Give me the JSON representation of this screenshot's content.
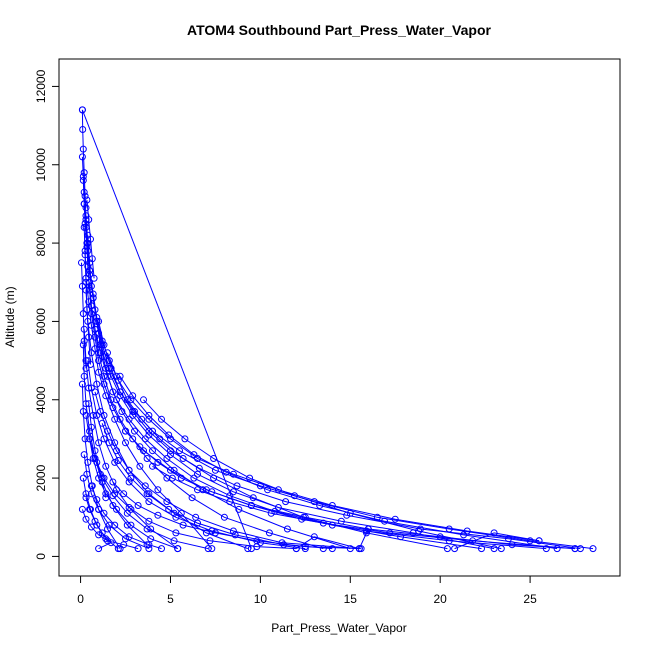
{
  "chart_data": {
    "type": "line",
    "title": "ATOM4 Southbound Part_Press_Water_Vapor",
    "xlabel": "Part_Press_Water_Vapor",
    "ylabel": "Altitude (m)",
    "xlim": [
      -1.2,
      30.0
    ],
    "ylim": [
      -500,
      12700
    ],
    "x_ticks": [
      0,
      5,
      10,
      15,
      20,
      25
    ],
    "y_ticks": [
      0,
      2000,
      4000,
      6000,
      8000,
      10000,
      12000
    ],
    "grid": false,
    "color": "#0000ff",
    "marker": "open-circle",
    "series": [
      {
        "x": [
          0.1,
          0.12,
          0.15,
          0.2,
          0.25,
          0.3,
          0.35,
          0.4,
          0.5,
          0.6,
          0.8,
          1.0,
          1.3,
          1.8,
          2.5,
          3.5,
          5.0,
          7.0,
          9.5,
          12.5,
          16.0,
          20.0,
          24.0,
          27.5
        ],
        "y": [
          11400,
          10900,
          10400,
          9800,
          9200,
          8600,
          8000,
          7400,
          6800,
          6200,
          5600,
          5000,
          4400,
          3800,
          3200,
          2700,
          2200,
          1700,
          1300,
          1000,
          700,
          500,
          300,
          200
        ]
      },
      {
        "x": [
          0.1,
          9.5
        ],
        "y": [
          11400,
          200
        ]
      },
      {
        "x": [
          0.15,
          0.2,
          0.3,
          0.4,
          0.5,
          0.7,
          0.9,
          1.2,
          1.6,
          2.2,
          3.0,
          4.0,
          5.5,
          7.5,
          10.0,
          13.0,
          16.5,
          20.5,
          25.0,
          28.5
        ],
        "y": [
          9600,
          9000,
          8400,
          7800,
          7200,
          6600,
          6000,
          5400,
          4800,
          4200,
          3700,
          3200,
          2700,
          2200,
          1800,
          1400,
          1000,
          700,
          400,
          200
        ]
      },
      {
        "x": [
          0.2,
          0.25,
          0.35,
          0.5,
          0.7,
          0.9,
          1.2,
          1.6,
          2.1,
          2.8,
          3.8,
          5.0,
          6.5,
          8.5,
          11.0,
          14.0,
          17.5,
          21.5,
          25.5
        ],
        "y": [
          9000,
          8500,
          7900,
          7300,
          6700,
          6100,
          5500,
          5000,
          4500,
          4000,
          3500,
          3000,
          2500,
          2100,
          1700,
          1300,
          950,
          650,
          400
        ]
      },
      {
        "x": [
          0.3,
          0.4,
          0.5,
          0.7,
          0.9,
          1.1,
          1.4,
          1.8,
          2.3,
          3.0,
          4.0,
          5.2,
          6.8,
          8.8,
          11.5,
          15.0
        ],
        "y": [
          8700,
          8000,
          7300,
          6600,
          6000,
          5400,
          4800,
          4200,
          3700,
          3200,
          2700,
          2200,
          1700,
          1200,
          700,
          200
        ]
      },
      {
        "x": [
          0.4,
          0.5,
          0.6,
          0.8,
          1.0,
          1.3,
          1.7,
          2.2,
          2.9,
          3.8,
          5.0,
          6.5,
          8.5,
          11.0,
          14.5,
          18.5,
          23.0
        ],
        "y": [
          8200,
          7500,
          6900,
          6300,
          5700,
          5100,
          4600,
          4100,
          3600,
          3100,
          2600,
          2100,
          1650,
          1250,
          900,
          600,
          200
        ]
      },
      {
        "x": [
          0.25,
          0.3,
          0.45,
          0.6,
          0.8,
          1.0,
          1.4,
          1.9,
          2.5,
          3.3,
          4.3,
          5.6,
          7.3
        ],
        "y": [
          7800,
          7100,
          6500,
          5900,
          5300,
          4700,
          4100,
          3500,
          2900,
          2300,
          1700,
          1100,
          200
        ]
      },
      {
        "x": [
          0.5,
          0.6,
          0.8,
          1.0,
          1.3,
          1.7,
          2.2,
          2.9,
          3.7,
          4.8,
          6.2,
          8.0,
          10.5,
          13.5
        ],
        "y": [
          7000,
          6400,
          5800,
          5200,
          4600,
          4000,
          3500,
          3000,
          2500,
          2000,
          1500,
          1000,
          600,
          200
        ]
      },
      {
        "x": [
          0.3,
          0.4,
          0.6,
          0.9,
          1.3,
          1.9,
          2.7,
          3.8,
          5.2,
          7.0,
          9.3
        ],
        "y": [
          6800,
          6000,
          5200,
          4400,
          3600,
          2900,
          2200,
          1600,
          1100,
          600,
          200
        ]
      },
      {
        "x": [
          0.6,
          0.8,
          1.1,
          1.5,
          2.0,
          2.7,
          3.6,
          4.8,
          6.3,
          8.3,
          10.8,
          14.0,
          17.8,
          22.3
        ],
        "y": [
          6400,
          5800,
          5200,
          4600,
          4000,
          3500,
          3000,
          2500,
          2000,
          1550,
          1150,
          800,
          500,
          200
        ]
      },
      {
        "x": [
          0.2,
          0.3,
          0.45,
          0.7,
          1.0,
          1.4,
          2.0,
          2.8,
          3.9,
          5.4
        ],
        "y": [
          5800,
          5000,
          4300,
          3600,
          2900,
          2300,
          1700,
          1200,
          700,
          200
        ]
      },
      {
        "x": [
          1.0,
          1.3,
          1.7,
          2.2,
          2.9,
          3.8,
          5.0,
          6.6,
          8.7,
          11.4,
          14.8,
          18.9,
          23.8,
          27.8
        ],
        "y": [
          6000,
          5400,
          4800,
          4200,
          3700,
          3200,
          2700,
          2250,
          1800,
          1400,
          1050,
          700,
          450,
          200
        ]
      },
      {
        "x": [
          0.15,
          0.2,
          0.3,
          0.5,
          0.8,
          1.2,
          1.8,
          2.6,
          3.7
        ],
        "y": [
          5400,
          4600,
          3900,
          3200,
          2500,
          1900,
          1300,
          800,
          300
        ]
      },
      {
        "x": [
          1.5,
          2.0,
          2.6,
          3.4,
          4.4,
          5.7,
          7.4,
          9.6,
          12.4,
          15.9,
          20.4
        ],
        "y": [
          5200,
          4600,
          4000,
          3500,
          3000,
          2500,
          2000,
          1500,
          1000,
          600,
          200
        ]
      },
      {
        "x": [
          0.4,
          0.6,
          0.9,
          1.3,
          1.9,
          2.7,
          3.8,
          5.3,
          7.3,
          10.0,
          12.5
        ],
        "y": [
          5000,
          4300,
          3600,
          3000,
          2400,
          1900,
          1400,
          1000,
          650,
          350,
          200
        ]
      },
      {
        "x": [
          2.2,
          2.9,
          3.8,
          4.9,
          6.3,
          8.1,
          10.4,
          13.3,
          16.9,
          21.3,
          26.5
        ],
        "y": [
          4600,
          4100,
          3600,
          3100,
          2600,
          2150,
          1700,
          1300,
          900,
          550,
          200
        ]
      },
      {
        "x": [
          0.1,
          0.15,
          0.25,
          0.4,
          0.65,
          1.0,
          1.5,
          2.2
        ],
        "y": [
          4400,
          3700,
          3000,
          2400,
          1800,
          1200,
          700,
          200
        ]
      },
      {
        "x": [
          0.8,
          1.1,
          1.5,
          2.0,
          2.7,
          3.6,
          4.8,
          6.4,
          8.5,
          11.2,
          15.5
        ],
        "y": [
          4200,
          3700,
          3200,
          2700,
          2200,
          1800,
          1400,
          1000,
          650,
          350,
          200
        ]
      },
      {
        "x": [
          3.5,
          4.5,
          5.8,
          7.4,
          9.4,
          11.9,
          15.0,
          18.8,
          23.4
        ],
        "y": [
          4000,
          3500,
          3000,
          2500,
          2000,
          1550,
          1100,
          650,
          200
        ]
      },
      {
        "x": [
          0.3,
          0.5,
          0.8,
          1.2,
          1.8,
          2.6,
          3.7,
          5.2,
          7.1
        ],
        "y": [
          3600,
          3000,
          2500,
          2000,
          1550,
          1100,
          700,
          400,
          200
        ]
      },
      {
        "x": [
          1.2,
          1.6,
          2.1,
          2.8,
          3.7,
          4.9,
          6.5,
          8.6,
          11.3,
          14.0
        ],
        "y": [
          3400,
          2900,
          2450,
          2000,
          1600,
          1200,
          850,
          550,
          300,
          200
        ]
      },
      {
        "x": [
          0.5,
          0.7,
          1.0,
          1.4,
          2.0,
          2.8,
          3.9,
          5.4
        ],
        "y": [
          3000,
          2500,
          2000,
          1600,
          1200,
          800,
          450,
          200
        ]
      },
      {
        "x": [
          2.5,
          3.3,
          4.3,
          5.6,
          7.3,
          9.5,
          12.3,
          15.9,
          20.5,
          25.9
        ],
        "y": [
          3200,
          2800,
          2400,
          2000,
          1650,
          1300,
          950,
          650,
          400,
          200
        ]
      },
      {
        "x": [
          0.2,
          0.35,
          0.6,
          1.0,
          1.6,
          2.5,
          3.8
        ],
        "y": [
          2600,
          2100,
          1600,
          1200,
          800,
          450,
          200
        ]
      },
      {
        "x": [
          0.9,
          1.3,
          1.9,
          2.7,
          3.8,
          5.3,
          7.2,
          9.8,
          12.0
        ],
        "y": [
          2400,
          2000,
          1600,
          1250,
          900,
          600,
          400,
          250,
          200
        ]
      },
      {
        "x": [
          4.0,
          5.1,
          6.5,
          8.3,
          10.6,
          13.5,
          17.2,
          21.8,
          27.5
        ],
        "y": [
          2300,
          2000,
          1700,
          1400,
          1100,
          850,
          600,
          400,
          200
        ]
      },
      {
        "x": [
          0.15,
          0.3,
          0.55,
          0.9,
          1.4,
          2.1
        ],
        "y": [
          2000,
          1600,
          1200,
          800,
          450,
          200
        ]
      },
      {
        "x": [
          0.6,
          0.9,
          1.3,
          1.9,
          2.7,
          3.8,
          4.5
        ],
        "y": [
          1800,
          1450,
          1100,
          800,
          500,
          300,
          200
        ]
      },
      {
        "x": [
          1.8,
          2.4,
          3.2,
          4.3,
          5.7,
          7.5,
          9.8,
          12.5,
          15.6
        ],
        "y": [
          1900,
          1600,
          1300,
          1050,
          800,
          600,
          400,
          250,
          200
        ]
      },
      {
        "x": [
          0.3,
          0.5,
          0.8,
          1.2,
          1.7,
          1.0
        ],
        "y": [
          1500,
          1200,
          900,
          600,
          350,
          200
        ]
      },
      {
        "x": [
          0.1,
          0.3,
          0.6,
          1.0,
          1.5,
          2.4,
          3.2
        ],
        "y": [
          1200,
          950,
          750,
          550,
          400,
          300,
          200
        ]
      },
      {
        "x": [
          0.45,
          0.6,
          0.8,
          1.1,
          1.4
        ],
        "y": [
          3900,
          3300,
          2700,
          2100,
          1500
        ]
      },
      {
        "x": [
          0.35,
          0.45,
          0.55,
          0.65,
          0.75
        ],
        "y": [
          9100,
          8600,
          8100,
          7600,
          7100
        ]
      },
      {
        "x": [
          0.2,
          0.25,
          0.3,
          0.35,
          0.45,
          0.55
        ],
        "y": [
          8400,
          7700,
          7000,
          6300,
          5600,
          4900
        ]
      },
      {
        "x": [
          0.1,
          0.15,
          0.2,
          0.3
        ],
        "y": [
          10200,
          9700,
          9300,
          8900
        ]
      },
      {
        "x": [
          0.05,
          0.1,
          0.15,
          0.2,
          0.3
        ],
        "y": [
          7500,
          6900,
          6200,
          5500,
          4800
        ]
      },
      {
        "x": [
          20.8,
          23.0,
          25.5
        ],
        "y": [
          200,
          600,
          400
        ]
      },
      {
        "x": [
          12.0,
          13.0,
          15.5,
          16.0
        ],
        "y": [
          200,
          500,
          200,
          700
        ]
      }
    ]
  }
}
